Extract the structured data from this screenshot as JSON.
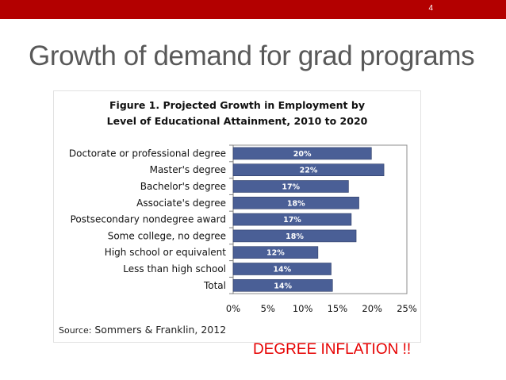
{
  "slide": {
    "page_number": "4",
    "title": "Growth of demand for grad programs",
    "callout": "DEGREE INFLATION !!",
    "colors": {
      "topbar": "#b30000",
      "bar_fill": "#4a5f96",
      "callout": "#e60000"
    }
  },
  "figure": {
    "title_line1": "Figure 1. Projected Growth in Employment by",
    "title_line2": "Level of Educational Attainment, 2010 to 2020",
    "source_label": "Source:",
    "source_text": "Sommers & Franklin, 2012"
  },
  "chart_data": {
    "type": "bar",
    "orientation": "horizontal",
    "title": "Figure 1. Projected Growth in Employment by Level of Educational Attainment, 2010 to 2020",
    "categories": [
      "Doctorate or professional degree",
      "Master's degree",
      "Bachelor's degree",
      "Associate's degree",
      "Postsecondary nondegree award",
      "Some college, no degree",
      "High school or equivalent",
      "Less than high school",
      "Total"
    ],
    "values": [
      19.9,
      21.7,
      16.6,
      18.1,
      17.0,
      17.7,
      12.2,
      14.1,
      14.3
    ],
    "data_labels": [
      "20%",
      "22%",
      "17%",
      "18%",
      "17%",
      "18%",
      "12%",
      "14%",
      "14%"
    ],
    "xlim": [
      0,
      25
    ],
    "xticks": [
      "0%",
      "5%",
      "10%",
      "15%",
      "20%",
      "25%"
    ],
    "xlabel": "",
    "ylabel": "",
    "grid": false,
    "legend": "none"
  }
}
